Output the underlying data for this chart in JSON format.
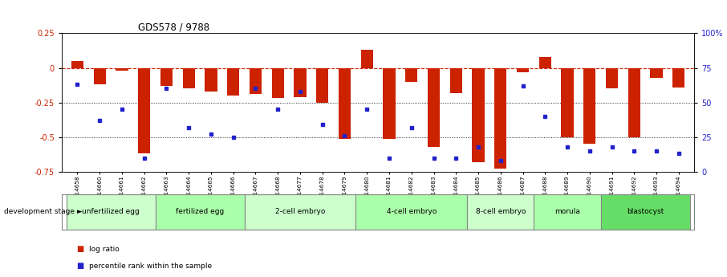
{
  "title": "GDS578 / 9788",
  "samples": [
    "GSM14658",
    "GSM14660",
    "GSM14661",
    "GSM14662",
    "GSM14663",
    "GSM14664",
    "GSM14665",
    "GSM14666",
    "GSM14667",
    "GSM14668",
    "GSM14677",
    "GSM14678",
    "GSM14679",
    "GSM14680",
    "GSM14681",
    "GSM14682",
    "GSM14683",
    "GSM14684",
    "GSM14685",
    "GSM14686",
    "GSM14687",
    "GSM14688",
    "GSM14689",
    "GSM14690",
    "GSM14691",
    "GSM14692",
    "GSM14693",
    "GSM14694"
  ],
  "log_ratio": [
    0.05,
    -0.12,
    -0.02,
    -0.62,
    -0.13,
    -0.15,
    -0.17,
    -0.2,
    -0.19,
    -0.22,
    -0.21,
    -0.25,
    -0.51,
    0.13,
    -0.51,
    -0.1,
    -0.57,
    -0.18,
    -0.68,
    -0.73,
    -0.03,
    0.08,
    -0.5,
    -0.55,
    -0.15,
    -0.5,
    -0.07,
    -0.14
  ],
  "percentile_rank": [
    63,
    37,
    45,
    10,
    60,
    32,
    27,
    25,
    60,
    45,
    58,
    34,
    26,
    45,
    10,
    32,
    10,
    10,
    18,
    8,
    62,
    40,
    18,
    15,
    18,
    15,
    15,
    13
  ],
  "stage_groups": [
    {
      "label": "unfertilized egg",
      "start": 0,
      "end": 4,
      "color": "#ccffcc"
    },
    {
      "label": "fertilized egg",
      "start": 4,
      "end": 8,
      "color": "#aaffaa"
    },
    {
      "label": "2-cell embryo",
      "start": 8,
      "end": 13,
      "color": "#ccffcc"
    },
    {
      "label": "4-cell embryo",
      "start": 13,
      "end": 18,
      "color": "#aaffaa"
    },
    {
      "label": "8-cell embryo",
      "start": 18,
      "end": 21,
      "color": "#ccffcc"
    },
    {
      "label": "morula",
      "start": 21,
      "end": 24,
      "color": "#aaffaa"
    },
    {
      "label": "blastocyst",
      "start": 24,
      "end": 28,
      "color": "#66dd66"
    }
  ],
  "bar_color": "#cc2200",
  "dot_color": "#2222cc",
  "ylim_left": [
    -0.75,
    0.25
  ],
  "ylim_right": [
    0,
    100
  ],
  "right_yticks": [
    0,
    25,
    50,
    75,
    100
  ],
  "right_ytick_labels": [
    "0",
    "25",
    "50",
    "75",
    "100%"
  ],
  "left_yticks": [
    -0.75,
    -0.5,
    -0.25,
    0,
    0.25
  ],
  "left_ytick_labels": [
    "-0.75",
    "-0.5",
    "-0.25",
    "0",
    "0.25"
  ]
}
